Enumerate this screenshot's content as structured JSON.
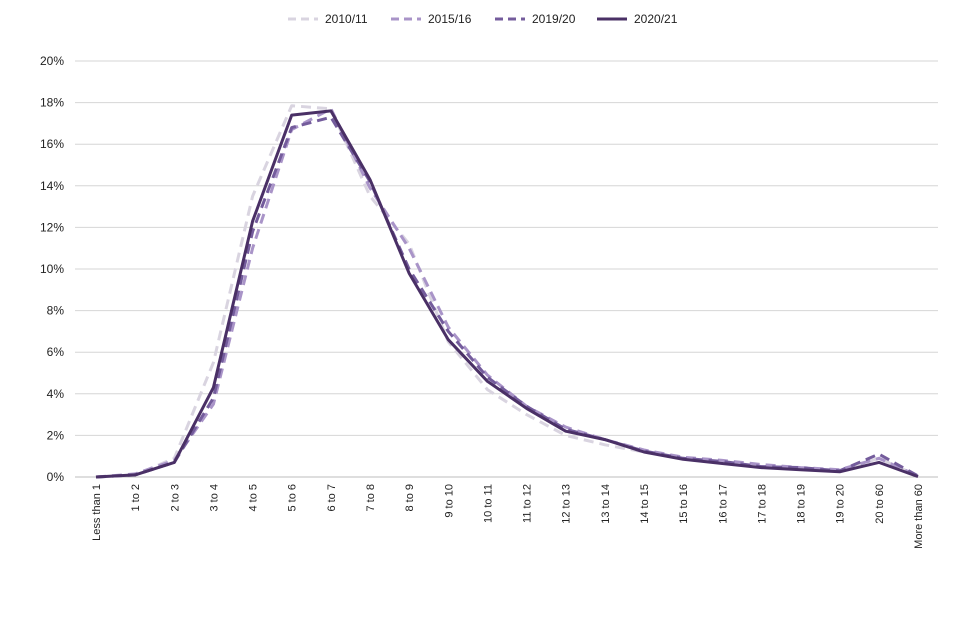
{
  "chart_data": {
    "type": "line",
    "categories": [
      "Less than 1",
      "1 to 2",
      "2 to 3",
      "3 to 4",
      "4 to 5",
      "5 to 6",
      "6 to 7",
      "7 to 8",
      "8 to 9",
      "9 to 10",
      "10 to 11",
      "11 to 12",
      "12 to 13",
      "13 to 14",
      "14 to 15",
      "15 to 16",
      "16 to 17",
      "17 to 18",
      "18 to 19",
      "19 to 20",
      "20 to 60",
      "More than 60"
    ],
    "y_ticks": [
      "0%",
      "2%",
      "4%",
      "6%",
      "8%",
      "10%",
      "12%",
      "14%",
      "16%",
      "18%",
      "20%"
    ],
    "ylim": [
      0,
      20
    ],
    "grid": true,
    "legend_position": "top",
    "series": [
      {
        "name": "2010/11",
        "color": "#d9d4e0",
        "dash": true,
        "values": [
          0,
          0.1,
          0.9,
          5.5,
          13.5,
          17.85,
          17.7,
          13.5,
          11.2,
          6.5,
          4.2,
          3.0,
          2.0,
          1.55,
          1.2,
          0.9,
          0.7,
          0.5,
          0.4,
          0.3,
          0.9,
          0.05
        ]
      },
      {
        "name": "2015/16",
        "color": "#a994c8",
        "dash": true,
        "values": [
          0,
          0.15,
          0.8,
          3.5,
          11.0,
          16.7,
          17.7,
          13.9,
          11.0,
          7.2,
          4.9,
          3.4,
          2.4,
          1.8,
          1.3,
          0.95,
          0.8,
          0.6,
          0.45,
          0.35,
          0.9,
          0.05
        ]
      },
      {
        "name": "2019/20",
        "color": "#745c9c",
        "dash": true,
        "values": [
          0,
          0.1,
          0.7,
          3.8,
          11.8,
          16.8,
          17.3,
          14.2,
          10.0,
          7.0,
          4.8,
          3.4,
          2.3,
          1.8,
          1.25,
          0.9,
          0.75,
          0.5,
          0.45,
          0.3,
          1.1,
          0.05
        ]
      },
      {
        "name": "2020/21",
        "color": "#4a3066",
        "dash": false,
        "values": [
          0,
          0.1,
          0.7,
          4.3,
          12.3,
          17.4,
          17.6,
          14.3,
          9.8,
          6.6,
          4.6,
          3.3,
          2.2,
          1.8,
          1.2,
          0.85,
          0.65,
          0.45,
          0.35,
          0.25,
          0.7,
          0.02
        ]
      }
    ]
  }
}
